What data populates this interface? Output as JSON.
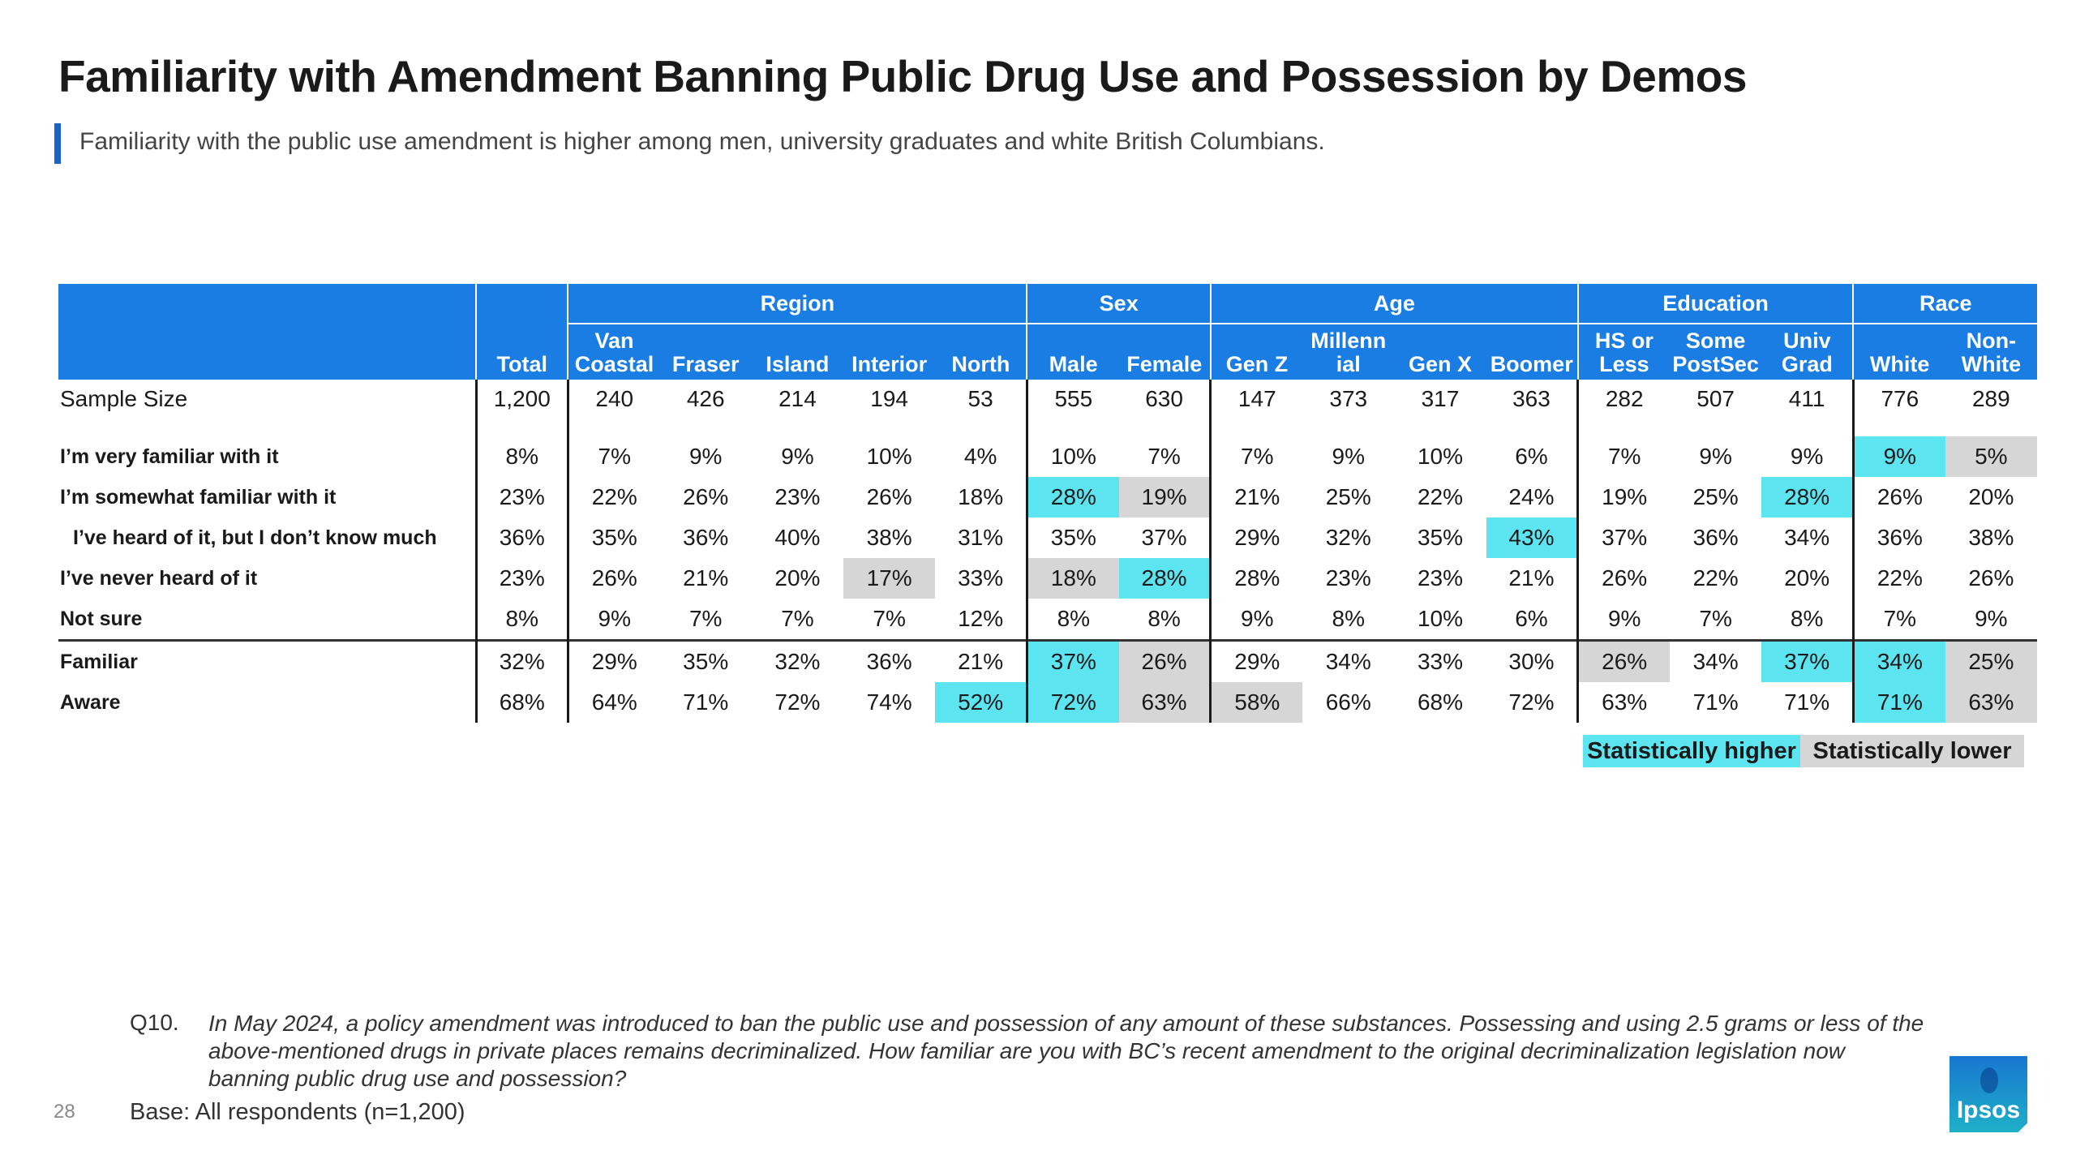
{
  "title": "Familiarity with Amendment Banning Public Drug Use and Possession by Demos",
  "subtitle": "Familiarity with the public use amendment is higher among men, university graduates and white British Columbians.",
  "table": {
    "groups": {
      "region": "Region",
      "sex": "Sex",
      "age": "Age",
      "education": "Education",
      "race": "Race"
    },
    "columns": [
      "Total",
      "Van Coastal",
      "Fraser",
      "Island",
      "Interior",
      "North",
      "Male",
      "Female",
      "Gen Z",
      "Millenn ial",
      "Gen X",
      "Boomer",
      "HS or Less",
      "Some PostSec",
      "Univ Grad",
      "White",
      "Non-White"
    ],
    "sample_row": {
      "label": "Sample Size",
      "values": [
        "1,200",
        "240",
        "426",
        "214",
        "194",
        "53",
        "555",
        "630",
        "147",
        "373",
        "317",
        "363",
        "282",
        "507",
        "411",
        "776",
        "289"
      ]
    },
    "rows": [
      {
        "label": "I’m very familiar with it",
        "values": [
          "8%",
          "7%",
          "9%",
          "9%",
          "10%",
          "4%",
          "10%",
          "7%",
          "7%",
          "9%",
          "10%",
          "6%",
          "7%",
          "9%",
          "9%",
          "9%",
          "5%"
        ]
      },
      {
        "label": "I’m somewhat familiar with it",
        "values": [
          "23%",
          "22%",
          "26%",
          "23%",
          "26%",
          "18%",
          "28%",
          "19%",
          "21%",
          "25%",
          "22%",
          "24%",
          "19%",
          "25%",
          "28%",
          "26%",
          "20%"
        ]
      },
      {
        "label": "I’ve heard of it, but I don’t know much",
        "values": [
          "36%",
          "35%",
          "36%",
          "40%",
          "38%",
          "31%",
          "35%",
          "37%",
          "29%",
          "32%",
          "35%",
          "43%",
          "37%",
          "36%",
          "34%",
          "36%",
          "38%"
        ]
      },
      {
        "label": "I’ve never heard of it",
        "values": [
          "23%",
          "26%",
          "21%",
          "20%",
          "17%",
          "33%",
          "18%",
          "28%",
          "28%",
          "23%",
          "23%",
          "21%",
          "26%",
          "22%",
          "20%",
          "22%",
          "26%"
        ]
      },
      {
        "label": "Not sure",
        "values": [
          "8%",
          "9%",
          "7%",
          "7%",
          "7%",
          "12%",
          "8%",
          "8%",
          "9%",
          "8%",
          "10%",
          "6%",
          "9%",
          "7%",
          "8%",
          "7%",
          "9%"
        ]
      },
      {
        "label": "Familiar",
        "values": [
          "32%",
          "29%",
          "35%",
          "32%",
          "36%",
          "21%",
          "37%",
          "26%",
          "29%",
          "34%",
          "33%",
          "30%",
          "26%",
          "34%",
          "37%",
          "34%",
          "25%"
        ]
      },
      {
        "label": "Aware",
        "values": [
          "68%",
          "64%",
          "71%",
          "72%",
          "74%",
          "52%",
          "72%",
          "63%",
          "58%",
          "66%",
          "68%",
          "72%",
          "63%",
          "71%",
          "71%",
          "71%",
          "63%"
        ]
      }
    ]
  },
  "colors": {
    "header_blue": "#1a7de3",
    "statistically_higher": "#5ce4f0",
    "statistically_lower": "#d6d6d6"
  },
  "legend": {
    "higher": "Statistically higher",
    "lower": "Statistically lower"
  },
  "footnote": {
    "question_number": "Q10.",
    "question_text": "In May 2024, a policy amendment was introduced to ban the public use and possession of any amount of these substances. Possessing and using 2.5 grams or less of the above-mentioned drugs in private places remains decriminalized. How familiar are you with BC’s recent amendment to the original decriminalization legislation now banning public drug use and possession?",
    "base": "Base: All respondents (n=1,200)"
  },
  "page_number": "28",
  "logo_text": "Ipsos"
}
